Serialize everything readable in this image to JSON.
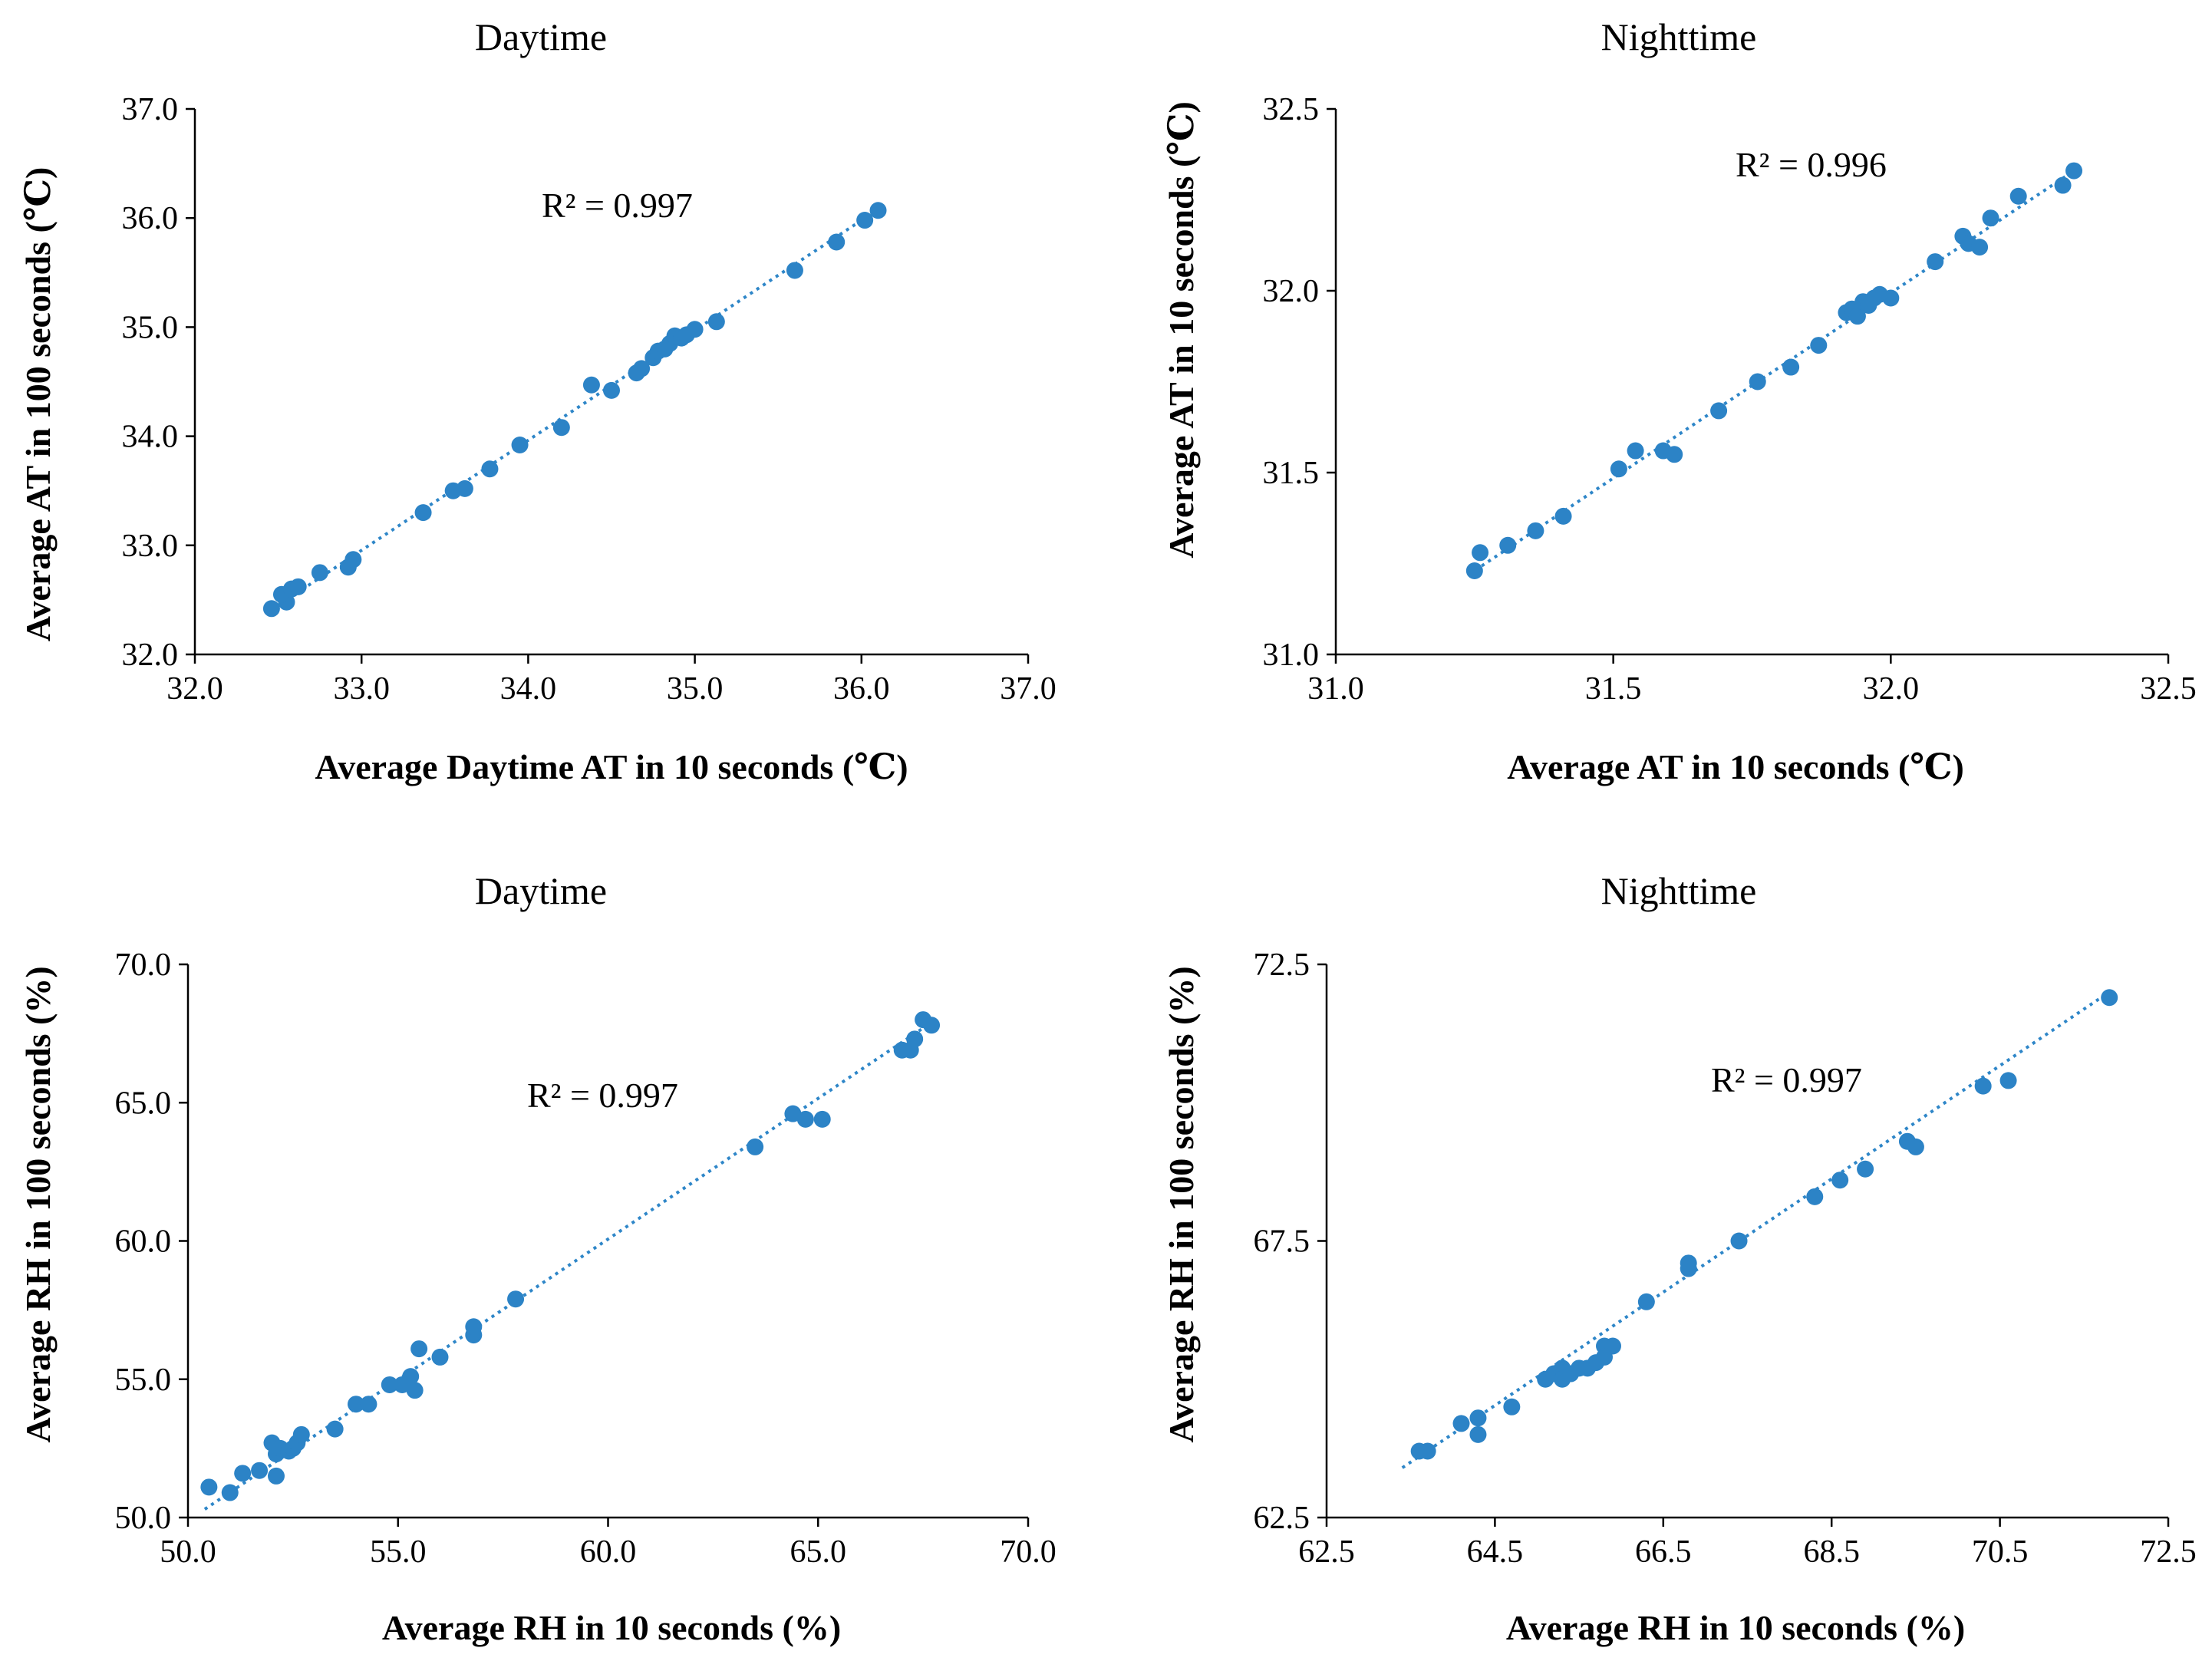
{
  "colors": {
    "points": "#2c83c6",
    "trendline": "#2e86c8",
    "axes": "#000000"
  },
  "chart_data": [
    {
      "type": "scatter",
      "id": "daytime-at",
      "title": "Daytime",
      "xlabel": "Average Daytime AT in 10 seconds (℃)",
      "ylabel": "Average AT in 100 seconds (℃)",
      "annotation": "R² = 0.997",
      "xlim": [
        32.0,
        37.0
      ],
      "ylim": [
        32.0,
        37.0
      ],
      "xticks": [
        "32.0",
        "33.0",
        "34.0",
        "35.0",
        "36.0",
        "37.0"
      ],
      "yticks": [
        "32.0",
        "33.0",
        "34.0",
        "35.0",
        "36.0",
        "37.0"
      ],
      "trendline": {
        "x1": 32.45,
        "y1": 32.4,
        "x2": 36.1,
        "y2": 36.08
      },
      "x": [
        32.46,
        32.55,
        32.52,
        32.58,
        32.62,
        32.75,
        32.92,
        32.95,
        33.37,
        33.55,
        33.62,
        33.77,
        33.95,
        34.2,
        34.38,
        34.5,
        34.65,
        34.68,
        34.75,
        34.78,
        34.82,
        34.85,
        34.88,
        34.92,
        34.95,
        35.0,
        35.13,
        35.6,
        35.85,
        36.02,
        36.1
      ],
      "y": [
        32.42,
        32.48,
        32.55,
        32.6,
        32.62,
        32.75,
        32.8,
        32.87,
        33.3,
        33.5,
        33.52,
        33.7,
        33.92,
        34.08,
        34.47,
        34.42,
        34.58,
        34.62,
        34.72,
        34.78,
        34.8,
        34.85,
        34.92,
        34.9,
        34.93,
        34.98,
        35.05,
        35.52,
        35.78,
        35.98,
        36.07
      ]
    },
    {
      "type": "scatter",
      "id": "nighttime-at",
      "title": "Nighttime",
      "xlabel": "Average AT in 10 seconds (℃)",
      "ylabel": "Average AT in 10 seconds (℃)",
      "annotation": "R² = 0.996",
      "xlim": [
        31.0,
        32.5
      ],
      "ylim": [
        31.0,
        32.5
      ],
      "xticks": [
        "31.0",
        "31.5",
        "32.0",
        "32.5"
      ],
      "yticks": [
        "31.0",
        "31.5",
        "32.0",
        "32.5"
      ],
      "trendline": {
        "x1": 31.24,
        "y1": 31.22,
        "x2": 32.33,
        "y2": 32.33
      },
      "x": [
        31.25,
        31.26,
        31.31,
        31.36,
        31.41,
        31.51,
        31.54,
        31.59,
        31.61,
        31.69,
        31.76,
        31.82,
        31.87,
        31.92,
        31.93,
        31.94,
        31.95,
        31.96,
        31.97,
        31.98,
        32.0,
        32.08,
        32.13,
        32.14,
        32.16,
        32.18,
        32.23,
        32.31,
        32.33
      ],
      "y": [
        31.23,
        31.28,
        31.3,
        31.34,
        31.38,
        31.51,
        31.56,
        31.56,
        31.55,
        31.67,
        31.75,
        31.79,
        31.85,
        31.94,
        31.95,
        31.93,
        31.97,
        31.96,
        31.98,
        31.99,
        31.98,
        32.08,
        32.15,
        32.13,
        32.12,
        32.2,
        32.26,
        32.29,
        32.33
      ]
    },
    {
      "type": "scatter",
      "id": "daytime-rh",
      "title": "Daytime",
      "xlabel": "Average RH in 10 seconds (%)",
      "ylabel": "Average RH in 100 seconds (%)",
      "annotation": "R² = 0.997",
      "xlim": [
        50.0,
        70.0
      ],
      "ylim": [
        50.0,
        70.0
      ],
      "xticks": [
        "50.0",
        "55.0",
        "60.0",
        "65.0",
        "70.0"
      ],
      "yticks": [
        "50.0",
        "55.0",
        "60.0",
        "65.0",
        "70.0"
      ],
      "trendline": {
        "x1": 50.4,
        "y1": 50.3,
        "x2": 67.7,
        "y2": 67.9
      },
      "x": [
        50.5,
        51.0,
        51.3,
        51.7,
        52.0,
        52.1,
        52.1,
        52.2,
        52.4,
        52.5,
        52.6,
        52.7,
        53.5,
        54.0,
        54.3,
        54.8,
        55.1,
        55.3,
        55.4,
        55.5,
        56.0,
        56.8,
        56.8,
        57.8,
        63.5,
        64.4,
        64.7,
        65.1,
        67.0,
        67.2,
        67.3,
        67.5,
        67.7
      ],
      "y": [
        51.1,
        50.9,
        51.6,
        51.7,
        52.7,
        51.5,
        52.3,
        52.5,
        52.4,
        52.5,
        52.7,
        53.0,
        53.2,
        54.1,
        54.1,
        54.8,
        54.8,
        55.1,
        54.6,
        56.1,
        55.8,
        56.6,
        56.9,
        57.9,
        63.4,
        64.6,
        64.4,
        64.4,
        66.9,
        66.9,
        67.3,
        68.0,
        67.8
      ]
    },
    {
      "type": "scatter",
      "id": "nighttime-rh",
      "title": "Nighttime",
      "xlabel": "Average RH in 10 seconds (%)",
      "ylabel": "Average RH in 100 seconds (%)",
      "annotation": "R² = 0.997",
      "xlim": [
        62.5,
        72.5
      ],
      "ylim": [
        62.5,
        72.5
      ],
      "xticks": [
        "62.5",
        "64.5",
        "66.5",
        "68.5",
        "70.5",
        "72.5"
      ],
      "yticks": [
        "62.5",
        "67.5",
        "72.5"
      ],
      "trendline": {
        "x1": 63.4,
        "y1": 63.4,
        "x2": 71.8,
        "y2": 72.0
      },
      "x": [
        63.6,
        63.7,
        64.1,
        64.3,
        64.3,
        64.7,
        65.1,
        65.2,
        65.3,
        65.3,
        65.4,
        65.5,
        65.6,
        65.7,
        65.8,
        65.8,
        65.9,
        66.3,
        66.8,
        66.8,
        67.4,
        68.3,
        68.6,
        68.9,
        69.4,
        69.5,
        70.3,
        70.6,
        71.8
      ],
      "y": [
        63.7,
        63.7,
        64.2,
        64.3,
        64.0,
        64.5,
        65.0,
        65.1,
        65.2,
        65.0,
        65.1,
        65.2,
        65.2,
        65.3,
        65.6,
        65.4,
        65.6,
        66.4,
        67.0,
        67.1,
        67.5,
        68.3,
        68.6,
        68.8,
        69.3,
        69.2,
        70.3,
        70.4,
        71.9
      ]
    }
  ]
}
